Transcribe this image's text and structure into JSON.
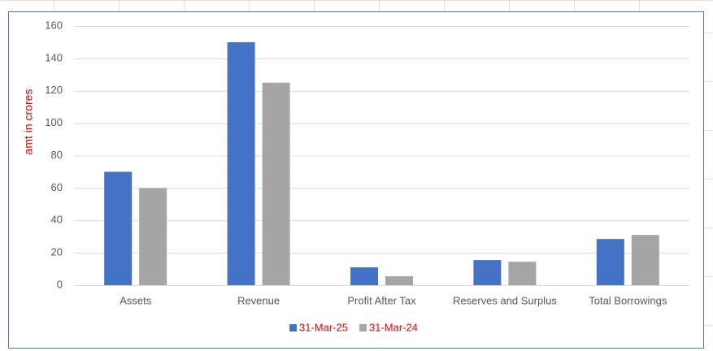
{
  "chart_data": {
    "type": "bar",
    "y_label": "amt in crores",
    "categories": [
      "Assets",
      "Revenue",
      "Profit After Tax",
      "Reserves and Surplus",
      "Total Borrowings"
    ],
    "series": [
      {
        "name": "31-Mar-25",
        "color": "#4472c4",
        "values": [
          70,
          150,
          11,
          15.5,
          28.5
        ]
      },
      {
        "name": "31-Mar-24",
        "color": "#a5a5a5",
        "values": [
          60,
          125,
          5.5,
          14.5,
          31
        ]
      }
    ],
    "ylim": [
      0,
      160
    ],
    "yticks": [
      0,
      20,
      40,
      60,
      80,
      100,
      120,
      140,
      160
    ],
    "grid": true,
    "legend": "bottom"
  }
}
